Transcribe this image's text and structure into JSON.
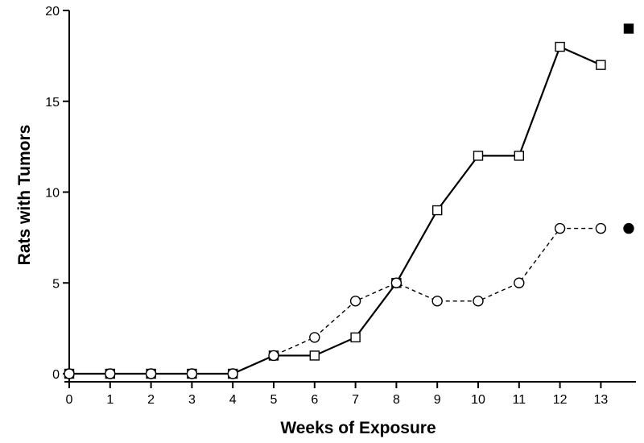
{
  "chart_data": {
    "type": "line",
    "title": "",
    "xlabel": "Weeks of Exposure",
    "ylabel": "Rats with Tumors",
    "x": [
      0,
      1,
      2,
      3,
      4,
      5,
      6,
      7,
      8,
      9,
      10,
      11,
      12,
      13
    ],
    "xlim": [
      0,
      13.8
    ],
    "ylim": [
      0,
      20
    ],
    "xticks": [
      "0",
      "1",
      "2",
      "3",
      "4",
      "5",
      "6",
      "7",
      "8",
      "9",
      "10",
      "11",
      "12",
      "13"
    ],
    "yticks": [
      "0",
      "5",
      "10",
      "15",
      "20"
    ],
    "grid": false,
    "series": [
      {
        "marker": "open-square",
        "line": "solid",
        "values": [
          0,
          0,
          0,
          0,
          0,
          1,
          1,
          2,
          5,
          9,
          12,
          12,
          18,
          17
        ],
        "reference_marker": "filled-square",
        "reference_value": 19
      },
      {
        "marker": "open-circle",
        "line": "dashed",
        "values": [
          0,
          0,
          0,
          0,
          0,
          1,
          2,
          4,
          5,
          4,
          4,
          5,
          8,
          8
        ],
        "reference_marker": "filled-circle",
        "reference_value": 8
      }
    ],
    "colors": {
      "ink": "#000000",
      "background": "#ffffff"
    }
  }
}
